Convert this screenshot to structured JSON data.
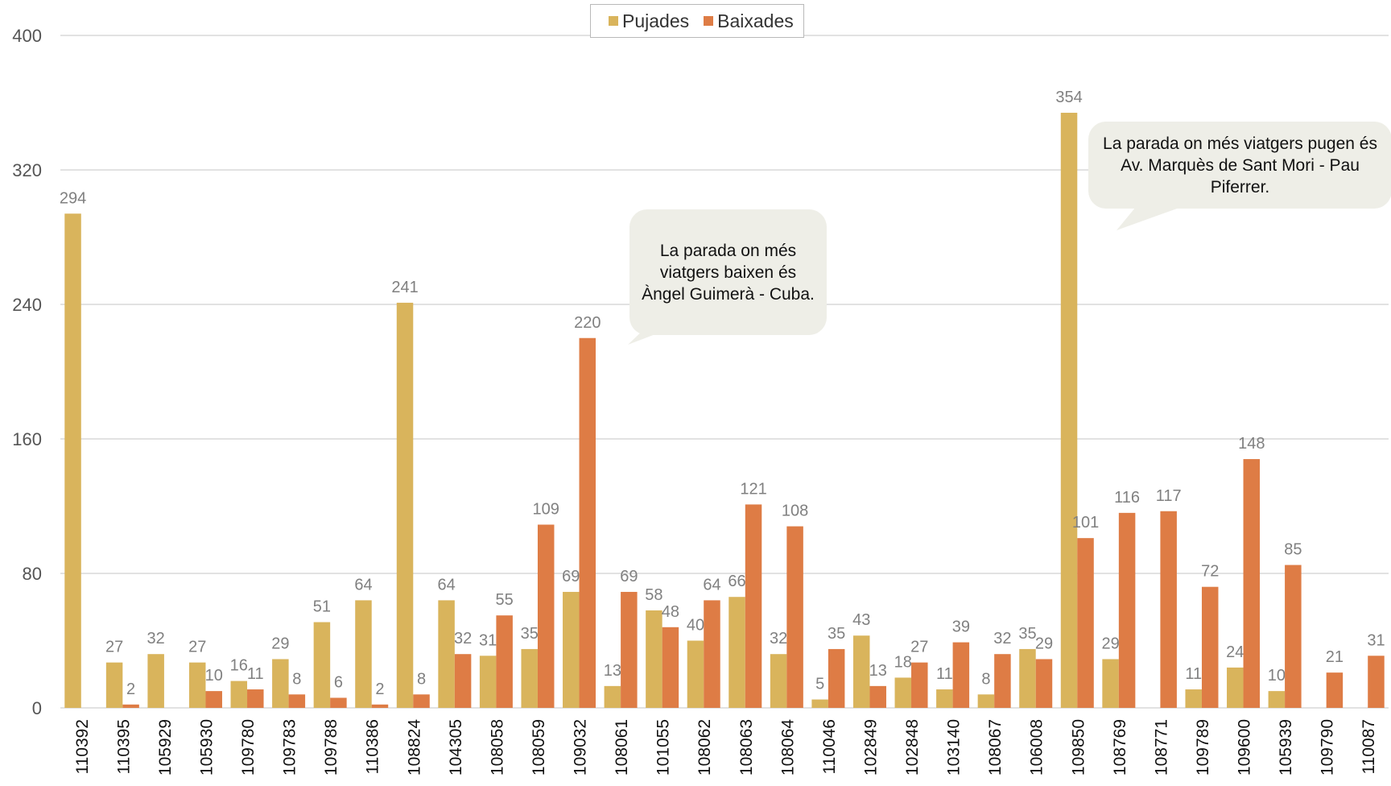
{
  "chart_data": {
    "type": "bar",
    "categories": [
      "110392",
      "110395",
      "105929",
      "105930",
      "109780",
      "109783",
      "109788",
      "110386",
      "108824",
      "104305",
      "108058",
      "108059",
      "109032",
      "108061",
      "101055",
      "108062",
      "108063",
      "108064",
      "110046",
      "102849",
      "102848",
      "103140",
      "108067",
      "106008",
      "109850",
      "108769",
      "108771",
      "109789",
      "109600",
      "105939",
      "109790",
      "110087"
    ],
    "series": [
      {
        "name": "Pujades",
        "color": "#d9b45c",
        "values": [
          294,
          27,
          32,
          27,
          16,
          29,
          51,
          64,
          241,
          64,
          31,
          35,
          69,
          13,
          58,
          40,
          66,
          32,
          5,
          43,
          18,
          11,
          8,
          35,
          354,
          29,
          null,
          11,
          24,
          10,
          null,
          null
        ]
      },
      {
        "name": "Baixades",
        "color": "#de7c45",
        "values": [
          null,
          2,
          null,
          10,
          11,
          8,
          6,
          2,
          8,
          32,
          55,
          109,
          220,
          69,
          48,
          64,
          121,
          108,
          35,
          13,
          27,
          39,
          32,
          29,
          101,
          116,
          117,
          72,
          148,
          85,
          21,
          31
        ]
      }
    ],
    "ylim": [
      0,
      400
    ],
    "yticks": [
      0,
      80,
      160,
      240,
      320,
      400
    ],
    "grid": true,
    "legend": "top-center",
    "annotations": [
      "La parada on més viatgers baixen és Àngel Guimerà - Cuba.",
      "La parada on més viatgers pugen és Av. Marquès de Sant Mori - Pau Piferrer."
    ]
  },
  "legend": {
    "pujades": "Pujades",
    "baixades": "Baixades"
  },
  "colors": {
    "grid": "#d0d0d0",
    "label": "#808080",
    "axis_text": "#555555"
  }
}
